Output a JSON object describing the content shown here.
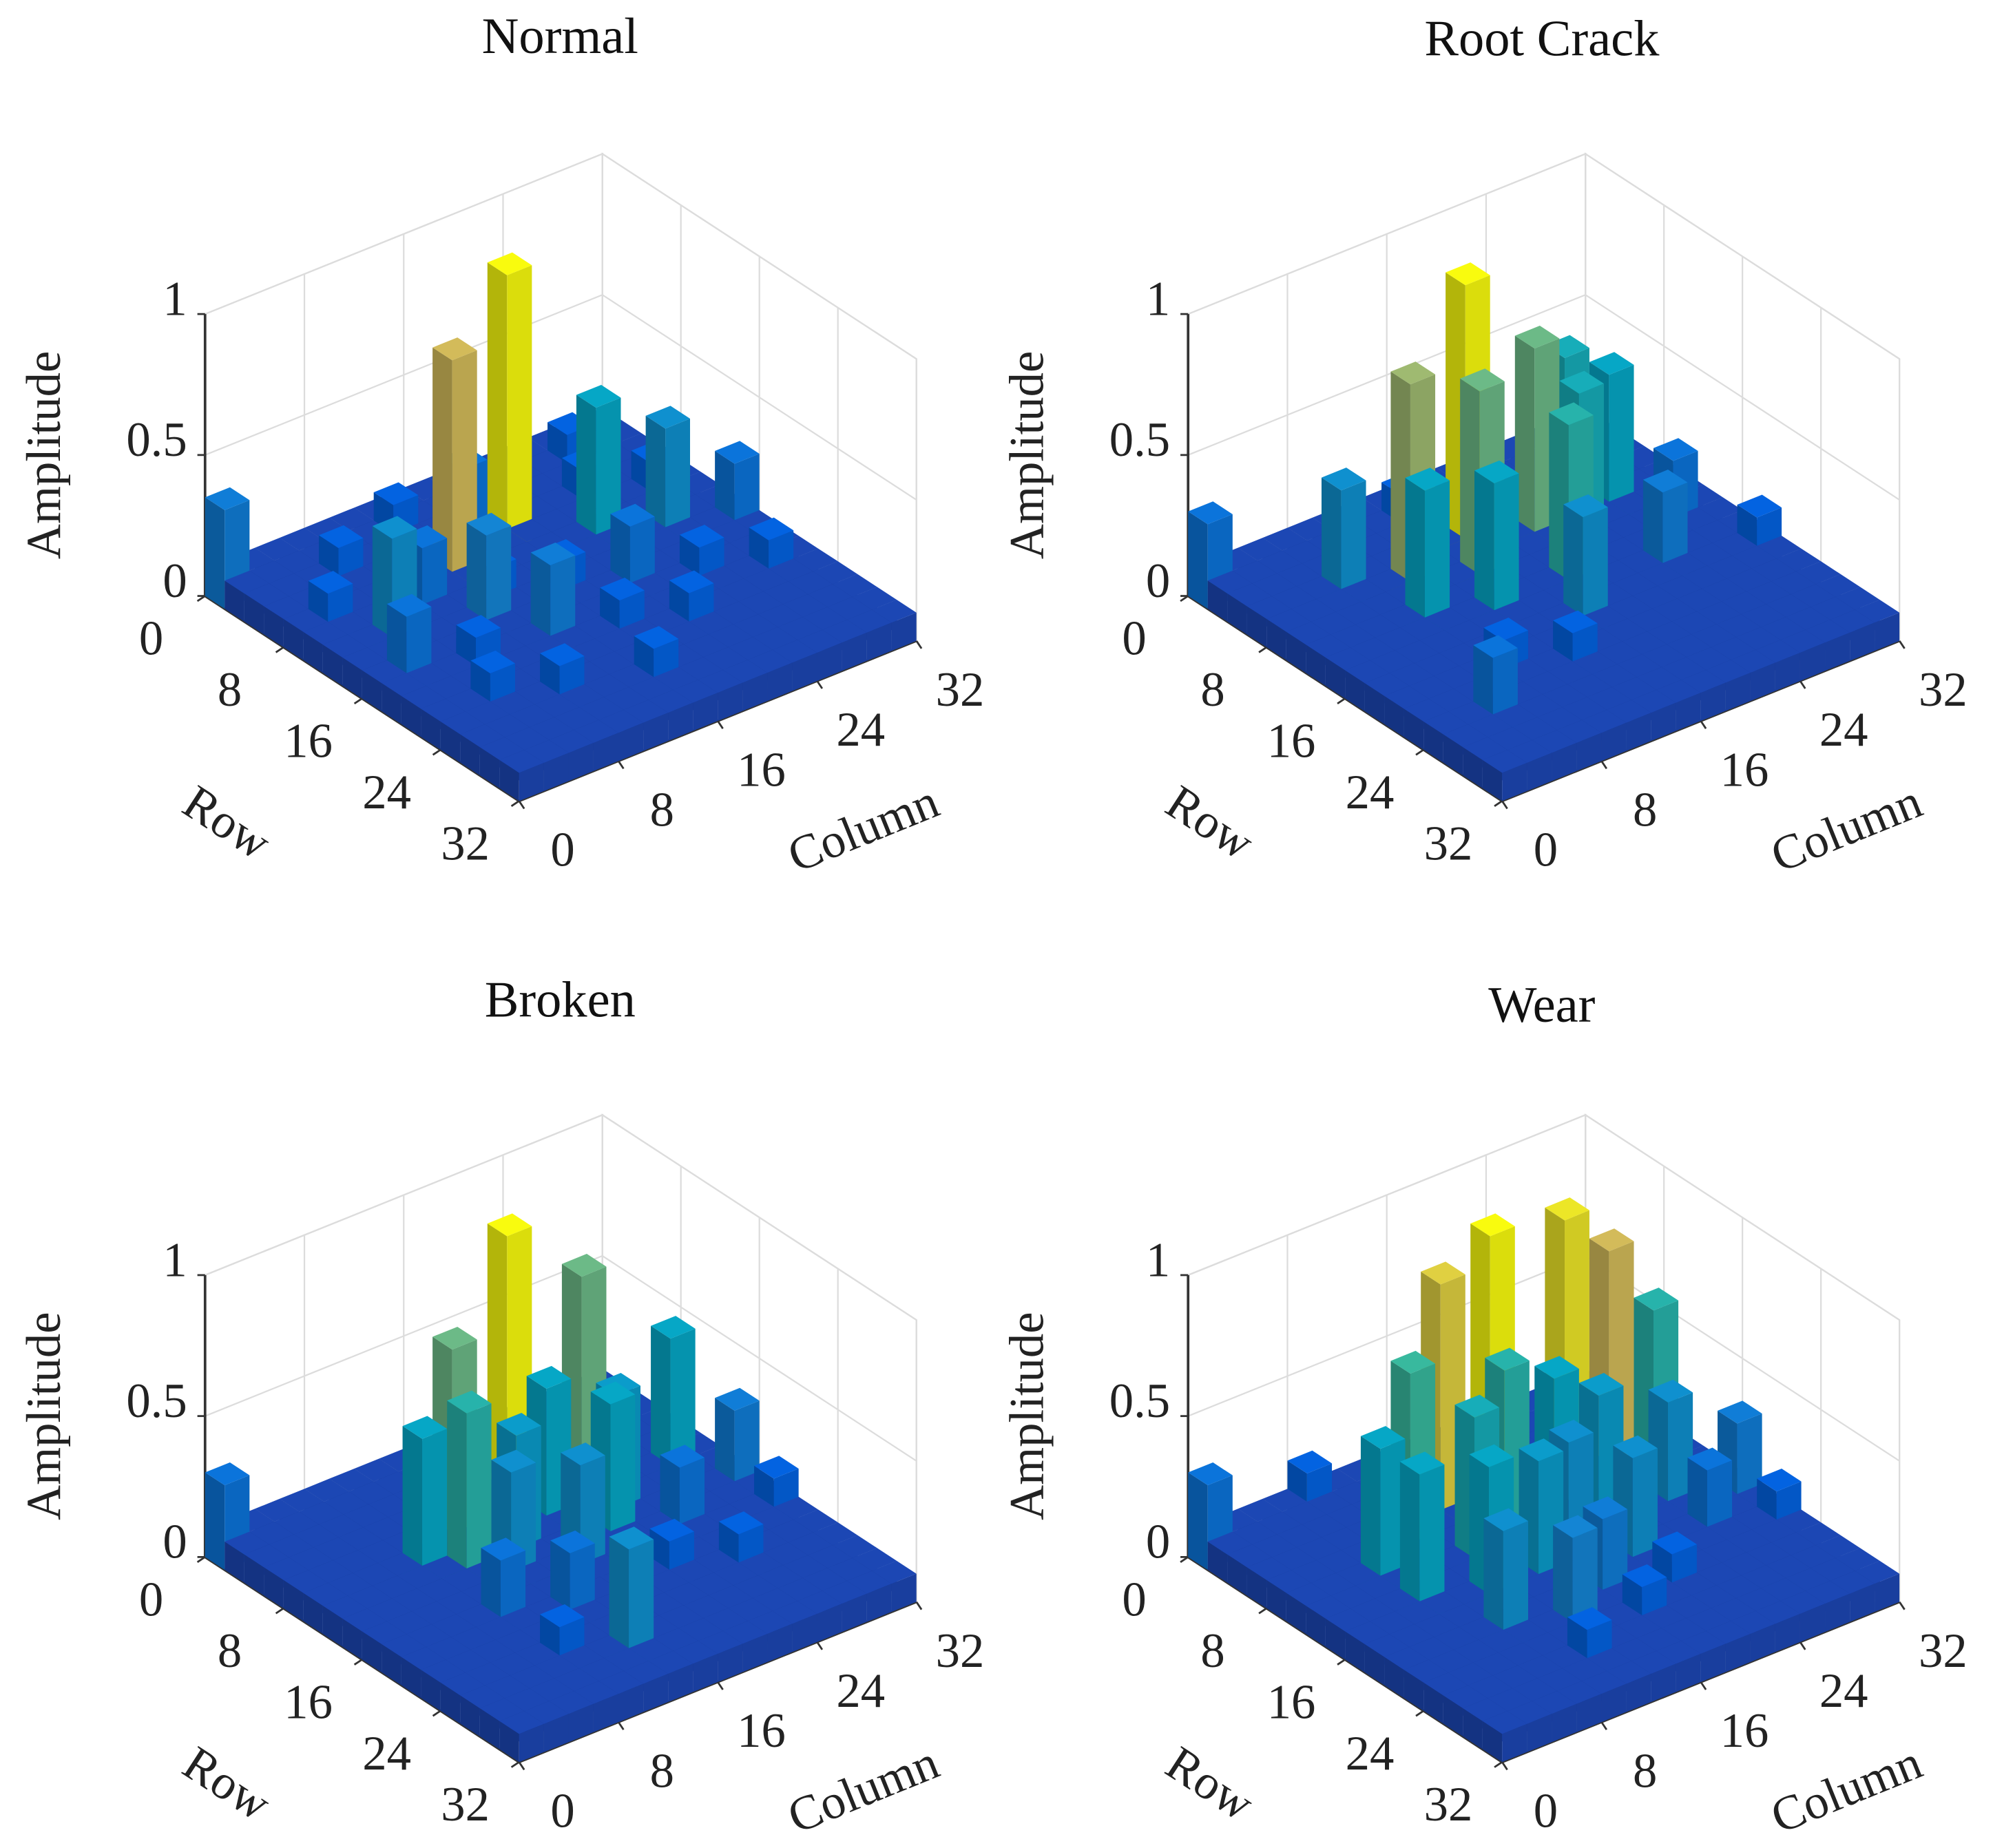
{
  "chart_data": [
    {
      "type": "bar3d",
      "title": "Normal",
      "xlabel": "Column",
      "ylabel": "Row",
      "zlabel": "Amplitude",
      "colormap": "parula",
      "xlim": [
        0,
        32
      ],
      "ylim": [
        0,
        32
      ],
      "zlim": [
        0,
        1
      ],
      "xticks": [
        0,
        8,
        16,
        24,
        32
      ],
      "yticks": [
        0,
        8,
        16,
        24,
        32
      ],
      "zticks": [
        0,
        0.5,
        1
      ],
      "z": [
        [
          0.35,
          0.1,
          0.1,
          0.1,
          0.1,
          0.1,
          0.1,
          0.1,
          0.1,
          0.1,
          0.1,
          0.1,
          0.1,
          0.1,
          0.1,
          0.1
        ],
        [
          0.1,
          0.1,
          0.1,
          0.1,
          0.1,
          0.1,
          0.2,
          0.1,
          0.1,
          0.1,
          0.1,
          0.1,
          0.1,
          0.2,
          0.1,
          0.1
        ],
        [
          0.1,
          0.1,
          0.1,
          0.2,
          0.1,
          0.1,
          0.1,
          0.1,
          0.3,
          0.1,
          0.1,
          0.1,
          0.1,
          0.1,
          0.1,
          0.1
        ],
        [
          0.1,
          0.1,
          0.1,
          0.1,
          0.1,
          0.1,
          0.1,
          0.1,
          0.1,
          1,
          0.1,
          0.1,
          0.2,
          0.1,
          0.1,
          0.1
        ],
        [
          0.1,
          0.2,
          0.1,
          0.1,
          0.1,
          0.1,
          0.85,
          0.1,
          0.1,
          0.1,
          0.1,
          0.1,
          0.1,
          0.1,
          0.2,
          0.1
        ],
        [
          0.1,
          0.1,
          0.1,
          0.1,
          0.3,
          0.1,
          0.1,
          0.1,
          0.1,
          0.1,
          0.1,
          0.55,
          0.1,
          0.1,
          0.1,
          0.1
        ],
        [
          0.1,
          0.1,
          0.45,
          0.1,
          0.1,
          0.1,
          0.2,
          0.1,
          0.1,
          0.1,
          0.1,
          0.1,
          0.1,
          0.45,
          0.1,
          0.1
        ],
        [
          0.1,
          0.1,
          0.1,
          0.1,
          0.1,
          0.4,
          0.1,
          0.1,
          0.2,
          0.1,
          0.1,
          0.1,
          0.1,
          0.1,
          0.1,
          0.3
        ],
        [
          0.1,
          0.3,
          0.1,
          0.1,
          0.1,
          0.1,
          0.1,
          0.1,
          0.1,
          0.1,
          0.3,
          0.1,
          0.1,
          0.1,
          0.1,
          0.1
        ],
        [
          0.1,
          0.1,
          0.1,
          0.2,
          0.1,
          0.1,
          0.35,
          0.1,
          0.1,
          0.1,
          0.1,
          0.1,
          0.2,
          0.1,
          0.1,
          0.1
        ],
        [
          0.1,
          0.1,
          0.1,
          0.1,
          0.1,
          0.1,
          0.1,
          0.1,
          0.2,
          0.1,
          0.1,
          0.1,
          0.1,
          0.1,
          0.2,
          0.1
        ],
        [
          0.1,
          0.1,
          0.2,
          0.1,
          0.1,
          0.1,
          0.1,
          0.1,
          0.1,
          0.1,
          0.2,
          0.1,
          0.1,
          0.1,
          0.1,
          0.1
        ],
        [
          0.1,
          0.1,
          0.1,
          0.1,
          0.2,
          0.1,
          0.1,
          0.1,
          0.1,
          0.1,
          0.1,
          0.1,
          0.1,
          0.1,
          0.1,
          0.1
        ],
        [
          0.1,
          0.1,
          0.1,
          0.1,
          0.1,
          0.1,
          0.1,
          0.2,
          0.1,
          0.1,
          0.1,
          0.1,
          0.1,
          0.1,
          0.1,
          0.1
        ],
        [
          0.1,
          0.1,
          0.1,
          0.1,
          0.1,
          0.1,
          0.1,
          0.1,
          0.1,
          0.1,
          0.1,
          0.1,
          0.1,
          0.1,
          0.1,
          0.1
        ],
        [
          0.1,
          0.1,
          0.1,
          0.1,
          0.1,
          0.1,
          0.1,
          0.1,
          0.1,
          0.1,
          0.1,
          0.1,
          0.1,
          0.1,
          0.1,
          0.1
        ]
      ]
    },
    {
      "type": "bar3d",
      "title": "Root Crack",
      "xlabel": "Column",
      "ylabel": "Row",
      "zlabel": "Amplitude",
      "colormap": "parula",
      "xlim": [
        0,
        32
      ],
      "ylim": [
        0,
        32
      ],
      "zlim": [
        0,
        1
      ],
      "xticks": [
        0,
        8,
        16,
        24,
        32
      ],
      "yticks": [
        0,
        8,
        16,
        24,
        32
      ],
      "zticks": [
        0,
        0.5,
        1
      ],
      "z": [
        [
          0.3,
          0.1,
          0.1,
          0.1,
          0.1,
          0.1,
          0.1,
          0.1,
          0.1,
          0.1,
          0.1,
          0.1,
          0.1,
          0.1,
          0.1,
          0.1
        ],
        [
          0.1,
          0.1,
          0.1,
          0.1,
          0.1,
          0.1,
          0.1,
          0.2,
          0.1,
          0.1,
          0.3,
          0.1,
          0.1,
          0.1,
          0.1,
          0.1
        ],
        [
          0.1,
          0.1,
          0.1,
          0.1,
          0.1,
          0.1,
          0.1,
          0.1,
          0.1,
          0.1,
          0.1,
          0.1,
          0.1,
          0.1,
          0.1,
          0.1
        ],
        [
          0.1,
          0.1,
          0.1,
          0.45,
          0.1,
          0.1,
          0.1,
          0.1,
          1,
          0.1,
          0.1,
          0.1,
          0.6,
          0.1,
          0.1,
          0.1
        ],
        [
          0.1,
          0.1,
          0.1,
          0.1,
          0.1,
          0.8,
          0.1,
          0.1,
          0.1,
          0.1,
          0.75,
          0.1,
          0.1,
          0.55,
          0.1,
          0.1
        ],
        [
          0.1,
          0.1,
          0.1,
          0.1,
          0.1,
          0.1,
          0.1,
          0.75,
          0.1,
          0.1,
          0.1,
          0.6,
          0.1,
          0.1,
          0.1,
          0.1
        ],
        [
          0.1,
          0.1,
          0.1,
          0.1,
          0.55,
          0.1,
          0.1,
          0.1,
          0.1,
          0.1,
          0.1,
          0.1,
          0.1,
          0.1,
          0.3,
          0.1
        ],
        [
          0.1,
          0.1,
          0.1,
          0.1,
          0.1,
          0.1,
          0.55,
          0.1,
          0.1,
          0.65,
          0.1,
          0.1,
          0.1,
          0.1,
          0.1,
          0.1
        ],
        [
          0.1,
          0.1,
          0.1,
          0.1,
          0.1,
          0.1,
          0.1,
          0.1,
          0.1,
          0.1,
          0.1,
          0.1,
          0.35,
          0.1,
          0.1,
          0.1
        ],
        [
          0.1,
          0.1,
          0.1,
          0.1,
          0.1,
          0.1,
          0.1,
          0.1,
          0.45,
          0.1,
          0.1,
          0.1,
          0.1,
          0.1,
          0.1,
          0.2
        ],
        [
          0.1,
          0.1,
          0.1,
          0.1,
          0.2,
          0.1,
          0.1,
          0.1,
          0.1,
          0.1,
          0.1,
          0.1,
          0.1,
          0.1,
          0.1,
          0.1
        ],
        [
          0.1,
          0.1,
          0.1,
          0.1,
          0.1,
          0.1,
          0.2,
          0.1,
          0.1,
          0.1,
          0.1,
          0.1,
          0.1,
          0.1,
          0.1,
          0.1
        ],
        [
          0.1,
          0.1,
          0.3,
          0.1,
          0.1,
          0.1,
          0.1,
          0.1,
          0.1,
          0.1,
          0.1,
          0.1,
          0.1,
          0.1,
          0.1,
          0.1
        ],
        [
          0.1,
          0.1,
          0.1,
          0.1,
          0.1,
          0.1,
          0.1,
          0.1,
          0.1,
          0.1,
          0.1,
          0.1,
          0.1,
          0.1,
          0.1,
          0.1
        ],
        [
          0.1,
          0.1,
          0.1,
          0.1,
          0.1,
          0.1,
          0.1,
          0.1,
          0.1,
          0.1,
          0.1,
          0.1,
          0.1,
          0.1,
          0.1,
          0.1
        ],
        [
          0.1,
          0.1,
          0.1,
          0.1,
          0.1,
          0.1,
          0.1,
          0.1,
          0.1,
          0.1,
          0.1,
          0.1,
          0.1,
          0.1,
          0.1,
          0.1
        ]
      ]
    },
    {
      "type": "bar3d",
      "title": "Broken",
      "xlabel": "Column",
      "ylabel": "Row",
      "zlabel": "Amplitude",
      "colormap": "parula",
      "xlim": [
        0,
        32
      ],
      "ylim": [
        0,
        32
      ],
      "zlim": [
        0,
        1
      ],
      "xticks": [
        0,
        8,
        16,
        24,
        32
      ],
      "yticks": [
        0,
        8,
        16,
        24,
        32
      ],
      "zticks": [
        0,
        0.5,
        1
      ],
      "z": [
        [
          0.3,
          0.1,
          0.1,
          0.1,
          0.1,
          0.1,
          0.1,
          0.1,
          0.1,
          0.1,
          0.1,
          0.1,
          0.1,
          0.1,
          0.1,
          0.1
        ],
        [
          0.1,
          0.1,
          0.1,
          0.1,
          0.1,
          0.1,
          0.1,
          0.1,
          0.1,
          0.1,
          0.1,
          0.1,
          0.1,
          0.1,
          0.1,
          0.1
        ],
        [
          0.1,
          0.1,
          0.1,
          0.1,
          0.1,
          0.1,
          0.1,
          0.1,
          0.1,
          0.1,
          0.1,
          0.1,
          0.1,
          0.1,
          0.1,
          0.1
        ],
        [
          0.1,
          0.1,
          0.1,
          0.1,
          0.1,
          0.1,
          0.1,
          0.1,
          0.1,
          1,
          0.1,
          0.1,
          0.75,
          0.1,
          0.1,
          0.1
        ],
        [
          0.1,
          0.1,
          0.1,
          0.1,
          0.1,
          0.1,
          0.75,
          0.1,
          0.1,
          0.1,
          0.1,
          0.1,
          0.1,
          0.1,
          0.1,
          0.1
        ],
        [
          0.1,
          0.1,
          0.1,
          0.1,
          0.55,
          0.1,
          0.1,
          0.1,
          0.1,
          0.55,
          0.1,
          0.1,
          0.1,
          0.1,
          0.55,
          0.1
        ],
        [
          0.1,
          0.1,
          0.1,
          0.1,
          0.1,
          0.65,
          0.1,
          0.5,
          0.1,
          0.1,
          0.1,
          0.5,
          0.1,
          0.1,
          0.1,
          0.1
        ],
        [
          0.1,
          0.1,
          0.1,
          0.1,
          0.1,
          0.1,
          0.45,
          0.1,
          0.1,
          0.1,
          0.55,
          0.1,
          0.1,
          0.1,
          0.1,
          0.35
        ],
        [
          0.1,
          0.1,
          0.1,
          0.1,
          0.1,
          0.1,
          0.1,
          0.1,
          0.45,
          0.1,
          0.1,
          0.1,
          0.3,
          0.1,
          0.1,
          0.1
        ],
        [
          0.1,
          0.1,
          0.1,
          0.1,
          0.3,
          0.1,
          0.1,
          0.1,
          0.1,
          0.1,
          0.1,
          0.1,
          0.1,
          0.1,
          0.1,
          0.2
        ],
        [
          0.1,
          0.1,
          0.1,
          0.1,
          0.1,
          0.1,
          0.3,
          0.1,
          0.1,
          0.1,
          0.2,
          0.1,
          0.1,
          0.1,
          0.1,
          0.1
        ],
        [
          0.1,
          0.1,
          0.1,
          0.1,
          0.1,
          0.1,
          0.1,
          0.1,
          0.1,
          0.1,
          0.1,
          0.1,
          0.2,
          0.1,
          0.1,
          0.1
        ],
        [
          0.1,
          0.1,
          0.1,
          0.1,
          0.2,
          0.1,
          0.1,
          0.1,
          0.1,
          0.1,
          0.1,
          0.1,
          0.1,
          0.1,
          0.1,
          0.1
        ],
        [
          0.1,
          0.1,
          0.1,
          0.1,
          0.1,
          0.1,
          0.45,
          0.1,
          0.1,
          0.1,
          0.1,
          0.1,
          0.1,
          0.1,
          0.1,
          0.1
        ],
        [
          0.1,
          0.1,
          0.1,
          0.1,
          0.1,
          0.1,
          0.1,
          0.1,
          0.1,
          0.1,
          0.1,
          0.1,
          0.1,
          0.1,
          0.1,
          0.1
        ],
        [
          0.1,
          0.1,
          0.1,
          0.1,
          0.1,
          0.1,
          0.1,
          0.1,
          0.1,
          0.1,
          0.1,
          0.1,
          0.1,
          0.1,
          0.1,
          0.1
        ]
      ]
    },
    {
      "type": "bar3d",
      "title": "Wear",
      "xlabel": "Column",
      "ylabel": "Row",
      "zlabel": "Amplitude",
      "colormap": "parula",
      "xlim": [
        0,
        32
      ],
      "ylim": [
        0,
        32
      ],
      "zlim": [
        0,
        1
      ],
      "xticks": [
        0,
        8,
        16,
        24,
        32
      ],
      "yticks": [
        0,
        8,
        16,
        24,
        32
      ],
      "zticks": [
        0,
        0.5,
        1
      ],
      "z": [
        [
          0.3,
          0.1,
          0.1,
          0.1,
          0.2,
          0.1,
          0.1,
          0.1,
          0.1,
          0.1,
          0.1,
          0.1,
          0.1,
          0.1,
          0.1,
          0.1
        ],
        [
          0.1,
          0.1,
          0.1,
          0.1,
          0.1,
          0.1,
          0.1,
          0.1,
          0.1,
          0.1,
          0.2,
          0.1,
          0.1,
          0.1,
          0.1,
          0.1
        ],
        [
          0.1,
          0.1,
          0.1,
          0.1,
          0.1,
          0.1,
          0.1,
          0.1,
          0.1,
          0.1,
          0.1,
          0.1,
          0.1,
          0.1,
          0.1,
          0.1
        ],
        [
          0.1,
          0.1,
          0.1,
          0.1,
          0.1,
          0.1,
          0.1,
          0.9,
          0.1,
          1,
          0.1,
          0.1,
          0.95,
          0.1,
          0.1,
          0.1
        ],
        [
          0.1,
          0.1,
          0.1,
          0.1,
          0.1,
          0.7,
          0.1,
          0.1,
          0.1,
          0.1,
          0.1,
          0.1,
          0.1,
          0.85,
          0.1,
          0.1
        ],
        [
          0.1,
          0.1,
          0.1,
          0.55,
          0.1,
          0.1,
          0.1,
          0.1,
          0.65,
          0.1,
          0.55,
          0.1,
          0.1,
          0.1,
          0.65,
          0.1
        ],
        [
          0.1,
          0.1,
          0.1,
          0.1,
          0.1,
          0.1,
          0.6,
          0.1,
          0.1,
          0.1,
          0.1,
          0.5,
          0.1,
          0.1,
          0.1,
          0.1
        ],
        [
          0.1,
          0.1,
          0.1,
          0.55,
          0.1,
          0.1,
          0.1,
          0.1,
          0.1,
          0.45,
          0.1,
          0.1,
          0.1,
          0.45,
          0.1,
          0.1
        ],
        [
          0.1,
          0.1,
          0.1,
          0.1,
          0.1,
          0.55,
          0.1,
          0.5,
          0.1,
          0.1,
          0.1,
          0.1,
          0.1,
          0.1,
          0.1,
          0.35
        ],
        [
          0.1,
          0.1,
          0.1,
          0.1,
          0.1,
          0.1,
          0.1,
          0.1,
          0.1,
          0.1,
          0.45,
          0.1,
          0.1,
          0.3,
          0.1,
          0.1
        ],
        [
          0.1,
          0.1,
          0.1,
          0.1,
          0.45,
          0.1,
          0.1,
          0.1,
          0.35,
          0.1,
          0.1,
          0.1,
          0.1,
          0.1,
          0.1,
          0.2
        ],
        [
          0.1,
          0.1,
          0.1,
          0.1,
          0.1,
          0.1,
          0.4,
          0.1,
          0.1,
          0.1,
          0.2,
          0.1,
          0.1,
          0.1,
          0.1,
          0.1
        ],
        [
          0.1,
          0.1,
          0.1,
          0.1,
          0.1,
          0.1,
          0.1,
          0.1,
          0.2,
          0.1,
          0.1,
          0.1,
          0.1,
          0.1,
          0.1,
          0.1
        ],
        [
          0.1,
          0.1,
          0.1,
          0.1,
          0.1,
          0.2,
          0.1,
          0.1,
          0.1,
          0.1,
          0.1,
          0.1,
          0.1,
          0.1,
          0.1,
          0.1
        ],
        [
          0.1,
          0.1,
          0.1,
          0.1,
          0.1,
          0.1,
          0.1,
          0.1,
          0.1,
          0.1,
          0.1,
          0.1,
          0.1,
          0.1,
          0.1,
          0.1
        ],
        [
          0.1,
          0.1,
          0.1,
          0.1,
          0.1,
          0.1,
          0.1,
          0.1,
          0.1,
          0.1,
          0.1,
          0.1,
          0.1,
          0.1,
          0.1,
          0.1
        ]
      ]
    }
  ]
}
